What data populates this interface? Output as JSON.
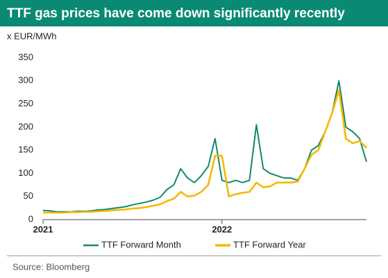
{
  "chart_data": {
    "type": "line",
    "title": "TTF gas prices have come down significantly recently",
    "y_label": "x EUR/MWh",
    "source": "Source: Bloomberg",
    "categories": [
      "2021",
      null,
      null,
      null,
      null,
      null,
      null,
      null,
      null,
      null,
      null,
      null,
      null,
      null,
      null,
      null,
      null,
      null,
      null,
      null,
      null,
      null,
      null,
      null,
      null,
      null,
      "2022",
      null,
      null,
      null,
      null,
      null,
      null,
      null,
      null,
      null,
      null,
      null,
      null,
      null,
      null,
      null,
      null,
      null,
      null,
      null,
      null,
      null
    ],
    "series": [
      {
        "name": "TTF Forward Month",
        "color": "#10896f",
        "values": [
          20,
          19,
          17,
          17,
          17,
          18,
          18,
          19,
          21,
          22,
          24,
          26,
          28,
          32,
          35,
          38,
          42,
          48,
          65,
          75,
          110,
          90,
          80,
          95,
          115,
          175,
          85,
          80,
          85,
          80,
          85,
          205,
          110,
          100,
          95,
          90,
          90,
          85,
          110,
          150,
          160,
          190,
          230,
          300,
          200,
          190,
          175,
          125
        ]
      },
      {
        "name": "TTF Forward Year",
        "color": "#f5b800",
        "values": [
          15,
          15,
          15,
          15,
          16,
          16,
          17,
          17,
          18,
          19,
          20,
          21,
          22,
          24,
          25,
          27,
          30,
          33,
          40,
          45,
          60,
          50,
          52,
          60,
          75,
          138,
          138,
          50,
          55,
          58,
          60,
          80,
          70,
          72,
          80,
          80,
          80,
          82,
          110,
          140,
          150,
          190,
          230,
          280,
          175,
          165,
          170,
          155
        ]
      }
    ],
    "ylim": [
      0,
      350
    ],
    "yticks": [
      0,
      50,
      100,
      150,
      200,
      250,
      300,
      350
    ],
    "grid": false,
    "legend": "bottom"
  }
}
